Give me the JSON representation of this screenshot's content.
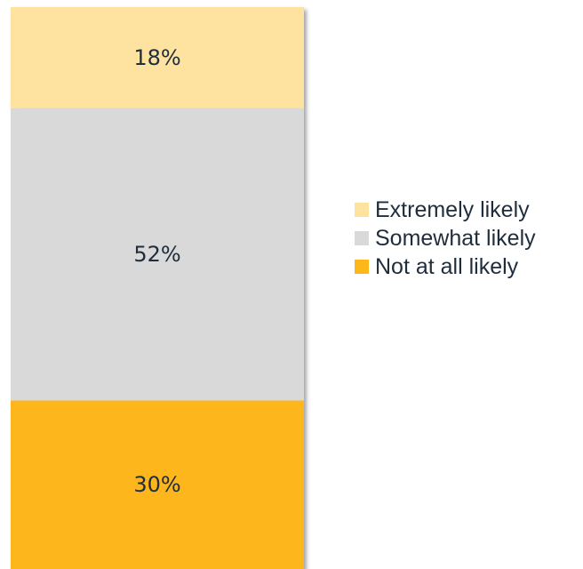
{
  "chart_data": {
    "type": "bar",
    "stacked": true,
    "orientation": "vertical",
    "categories": [
      ""
    ],
    "series": [
      {
        "name": "Not at all likely",
        "values": [
          30
        ],
        "label": "30%",
        "color": "#FDB71A"
      },
      {
        "name": "Somewhat likely",
        "values": [
          52
        ],
        "label": "52%",
        "color": "#D9D9D9"
      },
      {
        "name": "Extremely likely",
        "values": [
          18
        ],
        "label": "18%",
        "color": "#FDE2A0"
      }
    ],
    "legend_order": [
      "Extremely likely",
      "Somewhat likely",
      "Not at all likely"
    ],
    "ylim": [
      0,
      100
    ],
    "grid": false,
    "legend_position": "right"
  }
}
